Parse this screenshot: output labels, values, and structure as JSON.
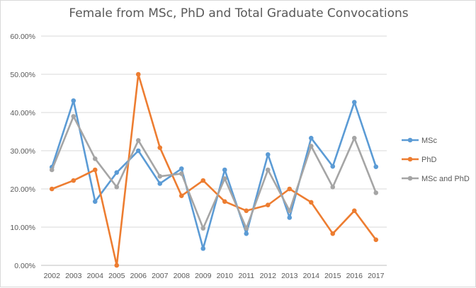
{
  "chart_data": {
    "type": "line",
    "title": "Female from MSc, PhD and Total Graduate Convocations",
    "xlabel": "",
    "ylabel": "",
    "ylim": [
      0,
      0.6
    ],
    "yticks": [
      "0.00%",
      "10.00%",
      "20.00%",
      "30.00%",
      "40.00%",
      "50.00%",
      "60.00%"
    ],
    "categories": [
      "2002",
      "2003",
      "2004",
      "2005",
      "2006",
      "2007",
      "2008",
      "2009",
      "2010",
      "2011",
      "2012",
      "2013",
      "2014",
      "2015",
      "2016",
      "2017"
    ],
    "grid": true,
    "legend_position": "right",
    "series": [
      {
        "name": "MSc",
        "color": "#5b9bd5",
        "values": [
          0.257,
          0.431,
          0.167,
          0.243,
          0.3,
          0.214,
          0.253,
          0.044,
          0.25,
          0.083,
          0.29,
          0.125,
          0.333,
          0.259,
          0.427,
          0.258
        ]
      },
      {
        "name": "PhD",
        "color": "#ed7d31",
        "values": [
          0.2,
          0.222,
          0.25,
          0.0,
          0.5,
          0.308,
          0.182,
          0.222,
          0.167,
          0.143,
          0.158,
          0.2,
          0.165,
          0.083,
          0.143,
          0.067
        ]
      },
      {
        "name": "MSc and PhD",
        "color": "#a5a5a5",
        "values": [
          0.25,
          0.39,
          0.279,
          0.205,
          0.327,
          0.233,
          0.24,
          0.097,
          0.227,
          0.097,
          0.25,
          0.143,
          0.312,
          0.205,
          0.333,
          0.19
        ]
      }
    ]
  }
}
